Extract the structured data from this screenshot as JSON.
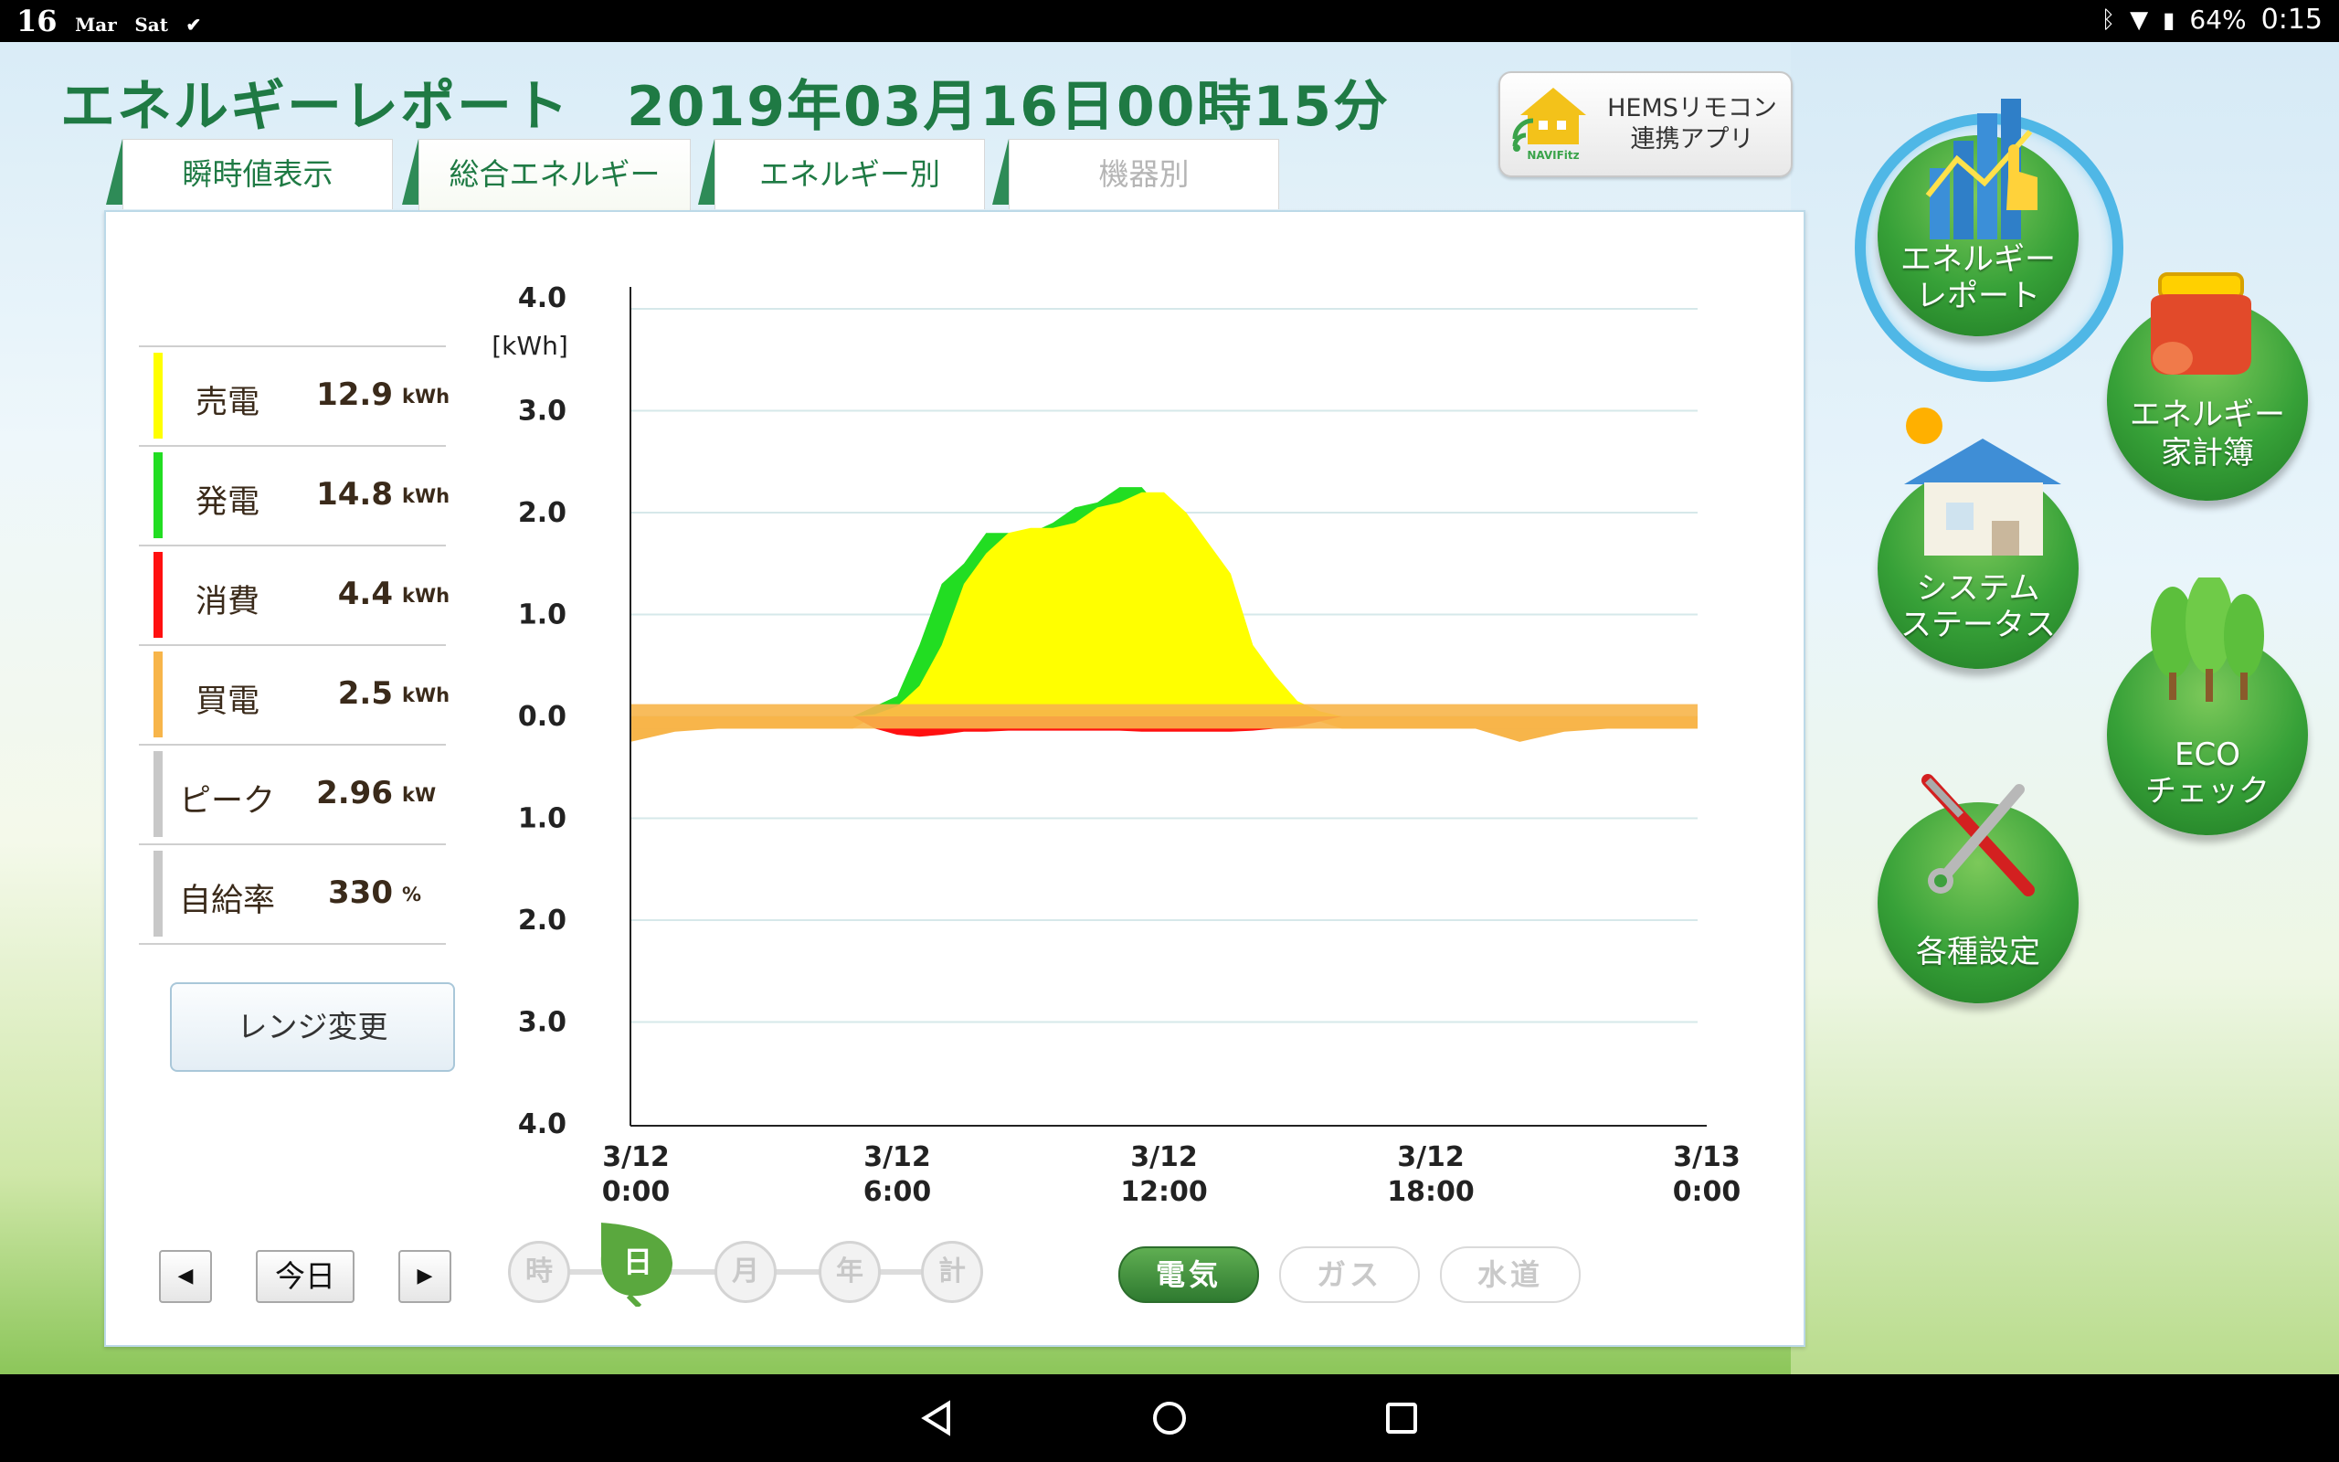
{
  "status_bar": {
    "day": "16",
    "month": "Mar",
    "weekday": "Sat",
    "battery": "64%",
    "time": "0:15"
  },
  "header": {
    "title": "エネルギーレポート　2019年03月16日00時15分",
    "hems_button": {
      "line1": "HEMSリモコン",
      "line2": "連携アプリ",
      "logo_text": "NAVIFitz"
    }
  },
  "tabs": [
    {
      "label": "瞬時値表示",
      "state": "normal"
    },
    {
      "label": "総合エネルギー",
      "state": "active"
    },
    {
      "label": "エネルギー別",
      "state": "normal"
    },
    {
      "label": "機器別",
      "state": "disabled"
    }
  ],
  "summary": [
    {
      "label": "売電",
      "value": "12.9",
      "unit": "kWh",
      "color": "#ffff00"
    },
    {
      "label": "発電",
      "value": "14.8",
      "unit": "kWh",
      "color": "#22dd22"
    },
    {
      "label": "消費",
      "value": "4.4",
      "unit": "kWh",
      "color": "#ff1010"
    },
    {
      "label": "買電",
      "value": "2.5",
      "unit": "kWh",
      "color": "#f7b54a"
    },
    {
      "label": "ピーク",
      "value": "2.96",
      "unit": "kW",
      "color": "#c8c8c8"
    },
    {
      "label": "自給率",
      "value": "330",
      "unit": "%",
      "color": "#c8c8c8"
    }
  ],
  "range_button": "レンジ変更",
  "chart_data": {
    "type": "area",
    "ylabel_unit": "[kWh]",
    "y_ticks_upper": [
      "4.0",
      "3.0",
      "2.0",
      "1.0",
      "0.0"
    ],
    "y_ticks_lower": [
      "1.0",
      "2.0",
      "3.0",
      "4.0"
    ],
    "ylim": [
      -4,
      4
    ],
    "x_ticks": [
      {
        "date": "3/12",
        "time": "0:00"
      },
      {
        "date": "3/12",
        "time": "6:00"
      },
      {
        "date": "3/12",
        "time": "12:00"
      },
      {
        "date": "3/12",
        "time": "18:00"
      },
      {
        "date": "3/13",
        "time": "0:00"
      }
    ],
    "x_hours": [
      0,
      1,
      2,
      3,
      4,
      5,
      5.5,
      6,
      6.5,
      7,
      7.5,
      8,
      8.5,
      9,
      9.5,
      10,
      10.5,
      11,
      11.5,
      12,
      12.5,
      13,
      13.5,
      14,
      14.5,
      15,
      15.5,
      16,
      16.5,
      17,
      18,
      19,
      20,
      21,
      22,
      23,
      24
    ],
    "series": [
      {
        "name": "売電",
        "color": "#ffff00",
        "values": [
          0,
          0,
          0,
          0,
          0,
          0,
          0.02,
          0.1,
          0.3,
          0.7,
          1.3,
          1.6,
          1.8,
          1.85,
          1.85,
          1.9,
          2.05,
          2.1,
          2.2,
          2.2,
          2.0,
          1.7,
          1.4,
          0.7,
          0.4,
          0.15,
          0.05,
          0,
          0,
          0,
          0,
          0,
          0,
          0,
          0,
          0,
          0
        ]
      },
      {
        "name": "発電",
        "color": "#22dd22",
        "values": [
          0,
          0,
          0,
          0,
          0,
          0,
          0.1,
          0.2,
          0.7,
          1.3,
          1.5,
          1.8,
          1.8,
          1.8,
          1.9,
          2.05,
          2.1,
          2.25,
          2.25,
          2.0,
          1.75,
          1.4,
          0.75,
          0.55,
          0.25,
          0.05,
          0,
          0,
          0,
          0,
          0,
          0,
          0,
          0,
          0,
          0,
          0
        ]
      },
      {
        "name": "消費",
        "color": "#ff1010",
        "values": [
          0,
          0,
          0,
          0,
          0,
          0,
          0.12,
          0.18,
          0.2,
          0.18,
          0.15,
          0.15,
          0.14,
          0.14,
          0.14,
          0.14,
          0.14,
          0.14,
          0.15,
          0.15,
          0.15,
          0.15,
          0.15,
          0.14,
          0.12,
          0.1,
          0.05,
          0,
          0,
          0,
          0,
          0,
          0,
          0,
          0,
          0,
          0
        ]
      },
      {
        "name": "買電",
        "color": "#f7b54a",
        "values": [
          0.25,
          0.15,
          0.12,
          0.12,
          0.12,
          0.12,
          0,
          0,
          0,
          0,
          0,
          0,
          0,
          0,
          0,
          0,
          0,
          0,
          0,
          0,
          0,
          0,
          0,
          0,
          0,
          0,
          0.05,
          0.12,
          0.12,
          0.12,
          0.12,
          0.12,
          0.25,
          0.15,
          0.12,
          0.12,
          0.12
        ]
      }
    ]
  },
  "nav": {
    "prev": "◀",
    "today": "今日",
    "next": "▶"
  },
  "periods": [
    {
      "label": "時",
      "active": false
    },
    {
      "label": "日",
      "active": true
    },
    {
      "label": "月",
      "active": false
    },
    {
      "label": "年",
      "active": false
    },
    {
      "label": "計",
      "active": false
    }
  ],
  "utilities": [
    {
      "label": "電気",
      "active": true
    },
    {
      "label": "ガス",
      "active": false
    },
    {
      "label": "水道",
      "active": false
    }
  ],
  "side_menu": {
    "energy_report": {
      "line1": "エネルギー",
      "line2": "レポート",
      "icon": "bar-chart-hand-icon"
    },
    "household": {
      "line1": "エネルギー",
      "line2": "家計簿",
      "icon": "purse-icon"
    },
    "system_status": {
      "line1": "システム",
      "line2": "ステータス",
      "icon": "solar-house-icon"
    },
    "eco_check": {
      "line1": "ECO",
      "line2": "チェック",
      "icon": "trees-icon"
    },
    "settings": {
      "line1": "各種設定",
      "icon": "tools-icon"
    }
  }
}
